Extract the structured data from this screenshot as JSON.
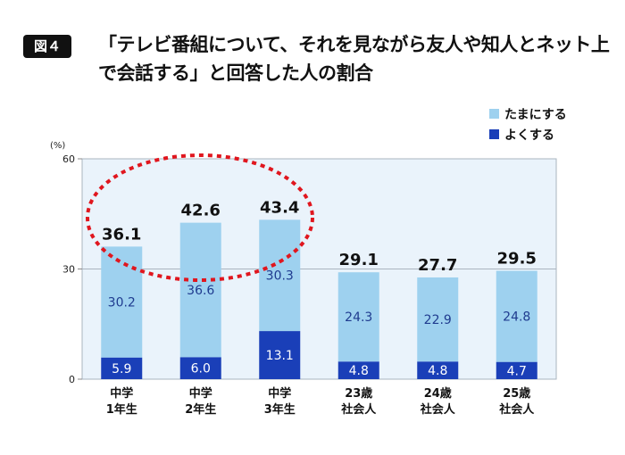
{
  "figure_label": "図４",
  "chart_data": {
    "type": "bar",
    "stacked": true,
    "title": "「テレビ番組について、それを見ながら友人や知人とネット上で会話する」と回答した人の割合",
    "ylabel": "(%)",
    "ylim": [
      0,
      60
    ],
    "yticks": [
      0,
      30,
      60
    ],
    "categories": [
      [
        "中学",
        "1年生"
      ],
      [
        "中学",
        "2年生"
      ],
      [
        "中学",
        "3年生"
      ],
      [
        "23歳",
        "社会人"
      ],
      [
        "24歳",
        "社会人"
      ],
      [
        "25歳",
        "社会人"
      ]
    ],
    "series": [
      {
        "name": "よくする",
        "color": "#1a3fb8",
        "values": [
          5.9,
          6.0,
          13.1,
          4.8,
          4.8,
          4.7
        ]
      },
      {
        "name": "たまにする",
        "color": "#9ed1ef",
        "values": [
          30.2,
          36.6,
          30.3,
          24.3,
          22.9,
          24.8
        ]
      }
    ],
    "totals": [
      "36.1",
      "42.6",
      "43.4",
      "29.1",
      "27.7",
      "29.5"
    ],
    "legend_position": "top-right",
    "annotation": "red dotted ellipse highlighting junior high school grades 1-3"
  },
  "legend": [
    "たまにする",
    "よくする"
  ],
  "colors": {
    "background": "#eaf3fb",
    "highlight": "#e0161e"
  }
}
